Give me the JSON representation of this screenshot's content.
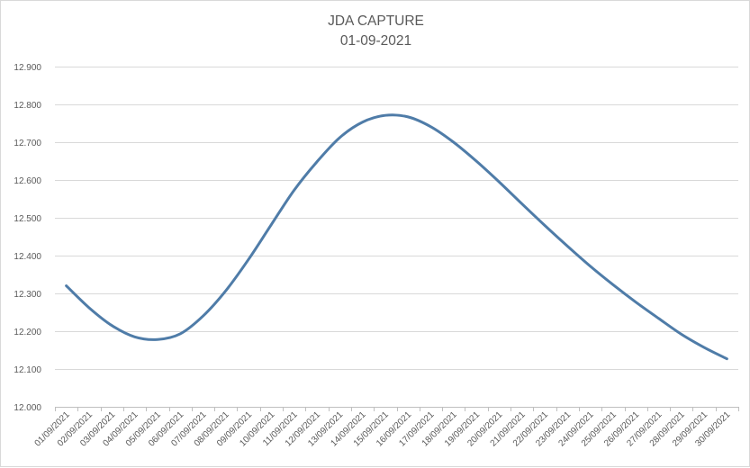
{
  "chart_data": {
    "type": "line",
    "title": "JDA CAPTURE",
    "subtitle": "01-09-2021",
    "xlabel": "",
    "ylabel": "",
    "ylim": [
      12.0,
      12.9
    ],
    "yticks": [
      "12.000",
      "12.100",
      "12.200",
      "12.300",
      "12.400",
      "12.500",
      "12.600",
      "12.700",
      "12.800",
      "12.900"
    ],
    "grid": true,
    "legend": "none",
    "line_color": "#4F7CA8",
    "categories": [
      "01/09/2021",
      "02/09/2021",
      "03/09/2021",
      "04/09/2021",
      "05/09/2021",
      "06/09/2021",
      "07/09/2021",
      "08/09/2021",
      "09/09/2021",
      "10/09/2021",
      "11/09/2021",
      "12/09/2021",
      "13/09/2021",
      "14/09/2021",
      "15/09/2021",
      "16/09/2021",
      "17/09/2021",
      "18/09/2021",
      "19/09/2021",
      "20/09/2021",
      "21/09/2021",
      "22/09/2021",
      "23/09/2021",
      "24/09/2021",
      "25/09/2021",
      "26/09/2021",
      "27/09/2021",
      "28/09/2021",
      "29/09/2021",
      "30/09/2021"
    ],
    "series": [
      {
        "values": [
          12.32,
          12.262,
          12.215,
          12.185,
          12.178,
          12.193,
          12.24,
          12.307,
          12.39,
          12.482,
          12.573,
          12.648,
          12.712,
          12.753,
          12.771,
          12.767,
          12.741,
          12.7,
          12.65,
          12.595,
          12.537,
          12.48,
          12.425,
          12.372,
          12.323,
          12.277,
          12.234,
          12.192,
          12.157,
          12.127
        ]
      }
    ]
  }
}
